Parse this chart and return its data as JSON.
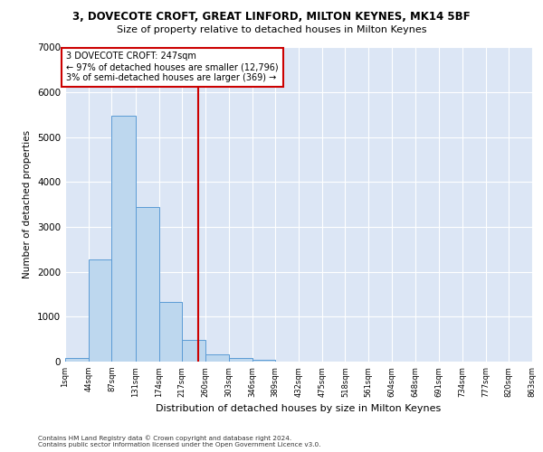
{
  "title": "3, DOVECOTE CROFT, GREAT LINFORD, MILTON KEYNES, MK14 5BF",
  "subtitle": "Size of property relative to detached houses in Milton Keynes",
  "xlabel": "Distribution of detached houses by size in Milton Keynes",
  "ylabel": "Number of detached properties",
  "bar_values": [
    75,
    2280,
    5470,
    3450,
    1320,
    480,
    160,
    90,
    50,
    0,
    0,
    0,
    0,
    0,
    0,
    0,
    0,
    0,
    0,
    0
  ],
  "bin_edges": [
    1,
    44,
    87,
    131,
    174,
    217,
    260,
    303,
    346,
    389,
    432,
    475,
    518,
    561,
    604,
    648,
    691,
    734,
    777,
    820,
    863
  ],
  "tick_labels": [
    "1sqm",
    "44sqm",
    "87sqm",
    "131sqm",
    "174sqm",
    "217sqm",
    "260sqm",
    "303sqm",
    "346sqm",
    "389sqm",
    "432sqm",
    "475sqm",
    "518sqm",
    "561sqm",
    "604sqm",
    "648sqm",
    "691sqm",
    "734sqm",
    "777sqm",
    "820sqm",
    "863sqm"
  ],
  "bar_color": "#bdd7ee",
  "bar_edge_color": "#5b9bd5",
  "vline_x": 247,
  "vline_color": "#cc0000",
  "annotation_text": "3 DOVECOTE CROFT: 247sqm\n← 97% of detached houses are smaller (12,796)\n3% of semi-detached houses are larger (369) →",
  "annotation_box_color": "#cc0000",
  "ylim": [
    0,
    7000
  ],
  "yticks": [
    0,
    1000,
    2000,
    3000,
    4000,
    5000,
    6000,
    7000
  ],
  "background_color": "#dce6f5",
  "footer_line1": "Contains HM Land Registry data © Crown copyright and database right 2024.",
  "footer_line2": "Contains public sector information licensed under the Open Government Licence v3.0."
}
